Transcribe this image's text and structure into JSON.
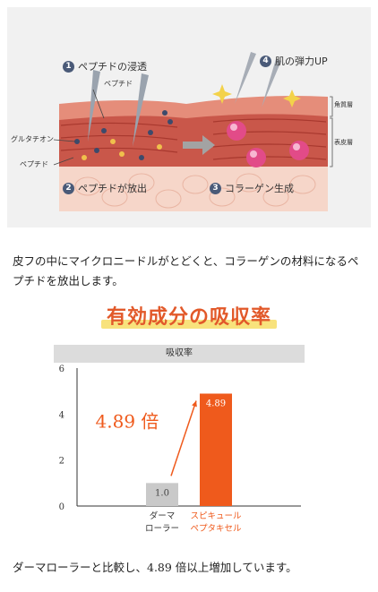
{
  "diagram": {
    "steps": [
      {
        "num": "1",
        "label": "ペプチドの浸透"
      },
      {
        "num": "2",
        "label": "ペプチドが放出"
      },
      {
        "num": "3",
        "label": "コラーゲン生成"
      },
      {
        "num": "4",
        "label": "肌の弾力UP"
      }
    ],
    "labels": {
      "peptide_top": "ペプチド",
      "glutathione": "グルタチオン",
      "peptide_left": "ペプチド",
      "stratum_corneum": "角質層",
      "epidermis": "表皮層"
    },
    "colors": {
      "skin_top": "#e58d7a",
      "dermis": "#c9574a",
      "lower": "#f6d6c9",
      "collagen": "#e24b88"
    }
  },
  "caption1": "皮フの中にマイクロニードルがとどくと、コラーゲンの材料になるペプチドを放出します。",
  "heading": "有効成分の吸収率",
  "chart_data": {
    "type": "bar",
    "title": "吸収率",
    "categories": [
      "ダーマ ローラー",
      "スピキュール ペプタキセル"
    ],
    "category_lines": [
      [
        "ダーマ",
        "ローラー"
      ],
      [
        "スピキュール",
        "ペプタキセル"
      ]
    ],
    "values": [
      1.0,
      4.89
    ],
    "value_labels": [
      "1.0",
      "4.89"
    ],
    "bar_colors": [
      "#c9c9c9",
      "#ef5a1c"
    ],
    "label_colors": [
      "#333333",
      "#ef5a1c"
    ],
    "yticks": [
      0,
      2,
      4,
      6
    ],
    "ylim": [
      0,
      6
    ],
    "annotation": "4.89 倍",
    "annotation_color": "#ef5a1c",
    "grid": false
  },
  "caption2": "ダーマローラーと比較し、4.89 倍以上増加しています。"
}
